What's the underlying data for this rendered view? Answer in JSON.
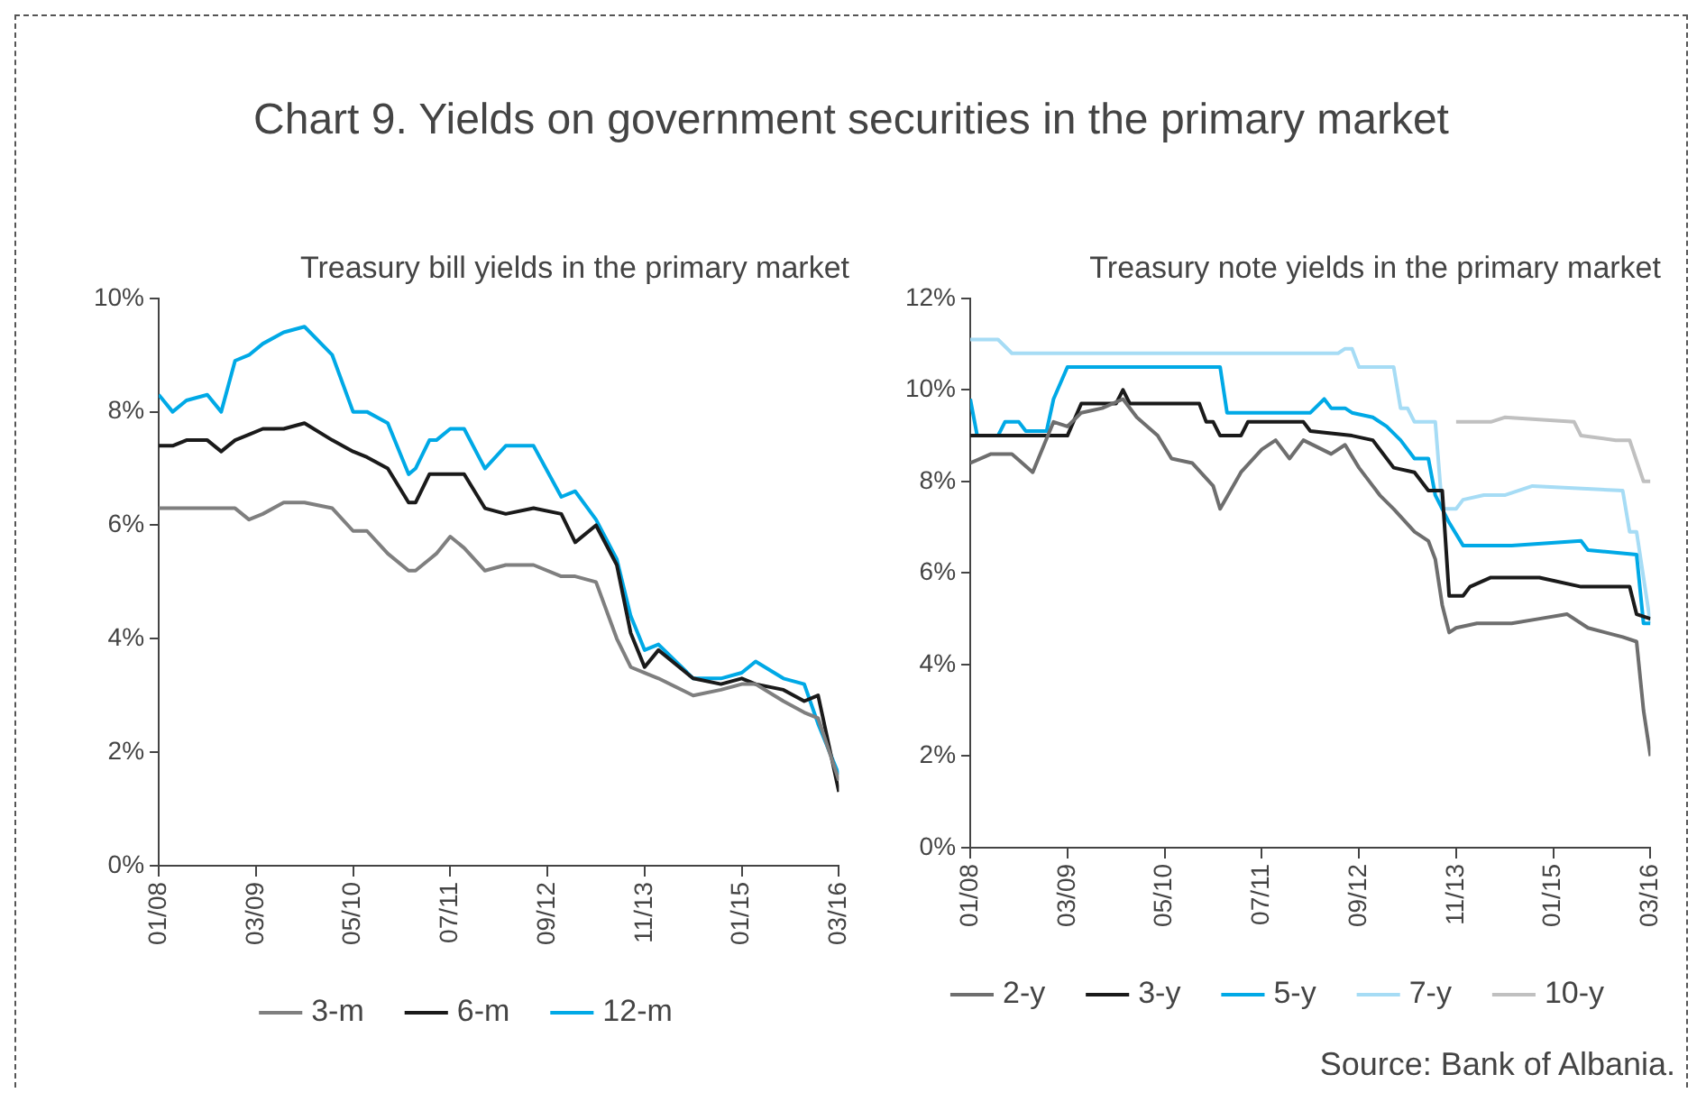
{
  "chart_data": [
    {
      "type": "line",
      "title": "Treasury bill yields in the primary market",
      "annotations": [
        "Chart  9. Yields on government securities in the primary market"
      ],
      "marker": "none",
      "grid": false,
      "legend": "bottom",
      "xlim": [
        "2008-01",
        "2016-03"
      ],
      "xticks": [
        {
          "value": "2008-01",
          "label": "01/08"
        },
        {
          "value": "2009-03",
          "label": "03/09"
        },
        {
          "value": "2010-05",
          "label": "05/10"
        },
        {
          "value": "2011-07",
          "label": "07/11"
        },
        {
          "value": "2012-09",
          "label": "09/12"
        },
        {
          "value": "2013-11",
          "label": "11/13"
        },
        {
          "value": "2015-01",
          "label": "01/15"
        },
        {
          "value": "2016-03",
          "label": "03/16"
        }
      ],
      "ylim": [
        0,
        10
      ],
      "yticks": [
        {
          "value": 0,
          "label": "0%"
        },
        {
          "value": 2,
          "label": "2%"
        },
        {
          "value": 4,
          "label": "4%"
        },
        {
          "value": 6,
          "label": "6%"
        },
        {
          "value": 8,
          "label": "8%"
        },
        {
          "value": 10,
          "label": "10%"
        }
      ],
      "x": [
        "2008-01",
        "2008-03",
        "2008-05",
        "2008-08",
        "2008-10",
        "2008-12",
        "2009-02",
        "2009-04",
        "2009-07",
        "2009-10",
        "2010-02",
        "2010-05",
        "2010-07",
        "2010-10",
        "2011-01",
        "2011-02",
        "2011-04",
        "2011-05",
        "2011-07",
        "2011-09",
        "2011-12",
        "2012-03",
        "2012-07",
        "2012-11",
        "2013-01",
        "2013-04",
        "2013-07",
        "2013-09",
        "2013-11",
        "2014-01",
        "2014-06",
        "2014-10",
        "2015-01",
        "2015-03",
        "2015-07",
        "2015-10",
        "2015-12",
        "2016-03"
      ],
      "series": [
        {
          "name": "3-m",
          "color": "#7f7f7f",
          "values": [
            6.3,
            6.3,
            6.3,
            6.3,
            6.3,
            6.3,
            6.1,
            6.2,
            6.4,
            6.4,
            6.3,
            5.9,
            5.9,
            5.5,
            5.2,
            5.2,
            5.4,
            5.5,
            5.8,
            5.6,
            5.2,
            5.3,
            5.3,
            5.1,
            5.1,
            5.0,
            4.0,
            3.5,
            3.4,
            3.3,
            3.0,
            3.1,
            3.2,
            3.2,
            2.9,
            2.7,
            2.6,
            1.5
          ]
        },
        {
          "name": "6-m",
          "color": "#1a1a1a",
          "values": [
            7.4,
            7.4,
            7.5,
            7.5,
            7.3,
            7.5,
            7.6,
            7.7,
            7.7,
            7.8,
            7.5,
            7.3,
            7.2,
            7.0,
            6.4,
            6.4,
            6.9,
            6.9,
            6.9,
            6.9,
            6.3,
            6.2,
            6.3,
            6.2,
            5.7,
            6.0,
            5.3,
            4.1,
            3.5,
            3.8,
            3.3,
            3.2,
            3.3,
            3.2,
            3.1,
            2.9,
            3.0,
            1.3
          ]
        },
        {
          "name": "12-m",
          "color": "#00a9e6",
          "values": [
            8.3,
            8.0,
            8.2,
            8.3,
            8.0,
            8.9,
            9.0,
            9.2,
            9.4,
            9.5,
            9.0,
            8.0,
            8.0,
            7.8,
            6.9,
            7.0,
            7.5,
            7.5,
            7.7,
            7.7,
            7.0,
            7.4,
            7.4,
            6.5,
            6.6,
            6.1,
            5.4,
            4.4,
            3.8,
            3.9,
            3.3,
            3.3,
            3.4,
            3.6,
            3.3,
            3.2,
            2.5,
            1.6
          ]
        }
      ]
    },
    {
      "type": "line",
      "title": "Treasury note yields in the primary market",
      "annotations": [
        "Source: Bank of Albania."
      ],
      "marker": "none",
      "grid": false,
      "legend": "bottom",
      "xlim": [
        "2008-01",
        "2016-03"
      ],
      "xticks": [
        {
          "value": "2008-01",
          "label": "01/08"
        },
        {
          "value": "2009-03",
          "label": "03/09"
        },
        {
          "value": "2010-05",
          "label": "05/10"
        },
        {
          "value": "2011-07",
          "label": "07/11"
        },
        {
          "value": "2012-09",
          "label": "09/12"
        },
        {
          "value": "2013-11",
          "label": "11/13"
        },
        {
          "value": "2015-01",
          "label": "01/15"
        },
        {
          "value": "2016-03",
          "label": "03/16"
        }
      ],
      "ylim": [
        0,
        12
      ],
      "yticks": [
        {
          "value": 0,
          "label": "0%"
        },
        {
          "value": 2,
          "label": "2%"
        },
        {
          "value": 4,
          "label": "4%"
        },
        {
          "value": 6,
          "label": "6%"
        },
        {
          "value": 8,
          "label": "8%"
        },
        {
          "value": 10,
          "label": "10%"
        },
        {
          "value": 12,
          "label": "12%"
        }
      ],
      "series": [
        {
          "name": "2-y",
          "color": "#6e6e6e",
          "x": [
            "2008-01",
            "2008-04",
            "2008-07",
            "2008-10",
            "2009-01",
            "2009-03",
            "2009-05",
            "2009-08",
            "2009-11",
            "2010-01",
            "2010-04",
            "2010-06",
            "2010-09",
            "2010-12",
            "2011-01",
            "2011-04",
            "2011-07",
            "2011-09",
            "2011-11",
            "2012-01",
            "2012-05",
            "2012-07",
            "2012-09",
            "2012-12",
            "2013-02",
            "2013-05",
            "2013-07",
            "2013-08",
            "2013-09",
            "2013-10",
            "2013-11",
            "2014-02",
            "2014-07",
            "2014-11",
            "2015-03",
            "2015-06",
            "2015-11",
            "2016-01",
            "2016-02",
            "2016-03"
          ],
          "values": [
            8.4,
            8.6,
            8.6,
            8.2,
            9.3,
            9.2,
            9.5,
            9.6,
            9.8,
            9.4,
            9.0,
            8.5,
            8.4,
            7.9,
            7.4,
            8.2,
            8.7,
            8.9,
            8.5,
            8.9,
            8.6,
            8.8,
            8.3,
            7.7,
            7.4,
            6.9,
            6.7,
            6.3,
            5.3,
            4.7,
            4.8,
            4.9,
            4.9,
            5.0,
            5.1,
            4.8,
            4.6,
            4.5,
            3.0,
            2.0
          ]
        },
        {
          "name": "3-y",
          "color": "#1a1a1a",
          "x": [
            "2008-01",
            "2009-03",
            "2009-05",
            "2009-10",
            "2009-11",
            "2009-12",
            "2010-10",
            "2010-11",
            "2010-12",
            "2011-01",
            "2011-04",
            "2011-05",
            "2012-01",
            "2012-02",
            "2012-08",
            "2012-11",
            "2013-02",
            "2013-05",
            "2013-07",
            "2013-09",
            "2013-10",
            "2013-12",
            "2014-01",
            "2014-04",
            "2014-11",
            "2015-05",
            "2015-12",
            "2016-01",
            "2016-03"
          ],
          "values": [
            9.0,
            9.0,
            9.7,
            9.7,
            10.0,
            9.7,
            9.7,
            9.3,
            9.3,
            9.0,
            9.0,
            9.3,
            9.3,
            9.1,
            9.0,
            8.9,
            8.3,
            8.2,
            7.8,
            7.8,
            5.5,
            5.5,
            5.7,
            5.9,
            5.9,
            5.7,
            5.7,
            5.1,
            5.0
          ]
        },
        {
          "name": "5-y",
          "color": "#00a9e6",
          "x": [
            "2008-01",
            "2008-02",
            "2008-05",
            "2008-06",
            "2008-08",
            "2008-09",
            "2008-12",
            "2009-01",
            "2009-03",
            "2011-01",
            "2011-02",
            "2012-02",
            "2012-04",
            "2012-05",
            "2012-07",
            "2012-08",
            "2012-11",
            "2013-01",
            "2013-03",
            "2013-05",
            "2013-07",
            "2013-08",
            "2013-10",
            "2013-12",
            "2014-07",
            "2015-05",
            "2015-06",
            "2016-01",
            "2016-02",
            "2016-03"
          ],
          "values": [
            9.8,
            9.0,
            9.0,
            9.3,
            9.3,
            9.1,
            9.1,
            9.8,
            10.5,
            10.5,
            9.5,
            9.5,
            9.8,
            9.6,
            9.6,
            9.5,
            9.4,
            9.2,
            8.9,
            8.5,
            8.5,
            7.7,
            7.1,
            6.6,
            6.6,
            6.7,
            6.5,
            6.4,
            4.9,
            4.9
          ]
        },
        {
          "name": "7-y",
          "color": "#a6dcf5",
          "x": [
            "2008-01",
            "2008-05",
            "2008-07",
            "2012-06",
            "2012-07",
            "2012-08",
            "2012-09",
            "2013-02",
            "2013-03",
            "2013-04",
            "2013-05",
            "2013-08",
            "2013-09",
            "2013-11",
            "2013-12",
            "2014-03",
            "2014-06",
            "2014-10",
            "2015-11",
            "2015-12",
            "2016-01",
            "2016-03"
          ],
          "values": [
            11.1,
            11.1,
            10.8,
            10.8,
            10.9,
            10.9,
            10.5,
            10.5,
            9.6,
            9.6,
            9.3,
            9.3,
            7.4,
            7.4,
            7.6,
            7.7,
            7.7,
            7.9,
            7.8,
            6.9,
            6.9,
            4.9
          ]
        },
        {
          "name": "10-y",
          "color": "#c0c0c0",
          "x": [
            "2013-11",
            "2014-04",
            "2014-06",
            "2015-04",
            "2015-05",
            "2015-10",
            "2015-12",
            "2016-02",
            "2016-03"
          ],
          "values": [
            9.3,
            9.3,
            9.4,
            9.3,
            9.0,
            8.9,
            8.9,
            8.0,
            8.0
          ]
        }
      ]
    }
  ]
}
